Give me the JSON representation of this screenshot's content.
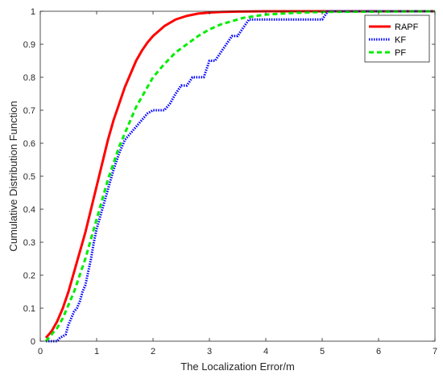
{
  "chart_data": {
    "type": "line",
    "title": "",
    "xlabel": "The Localization Error/m",
    "ylabel": "Cumulative Distribution Function",
    "xlim": [
      0,
      7
    ],
    "ylim": [
      0,
      1
    ],
    "xticks": [
      "0",
      "1",
      "2",
      "3",
      "4",
      "5",
      "6",
      "7"
    ],
    "yticks": [
      "0",
      "0.1",
      "0.2",
      "0.3",
      "0.4",
      "0.5",
      "0.6",
      "0.7",
      "0.8",
      "0.9",
      "1"
    ],
    "grid": false,
    "legend_position": "top-right",
    "series": [
      {
        "name": "RAPF",
        "color": "#ff0000",
        "dash": "solid",
        "x": [
          0.1,
          0.2,
          0.3,
          0.4,
          0.5,
          0.6,
          0.7,
          0.8,
          0.9,
          1.0,
          1.1,
          1.2,
          1.3,
          1.4,
          1.5,
          1.6,
          1.7,
          1.8,
          1.9,
          2.0,
          2.2,
          2.4,
          2.6,
          2.8,
          3.0,
          3.2,
          3.5,
          4.0,
          5.0,
          7.0
        ],
        "y": [
          0.01,
          0.03,
          0.06,
          0.1,
          0.15,
          0.21,
          0.27,
          0.33,
          0.4,
          0.47,
          0.54,
          0.61,
          0.67,
          0.72,
          0.77,
          0.81,
          0.85,
          0.88,
          0.905,
          0.925,
          0.955,
          0.975,
          0.986,
          0.993,
          0.996,
          0.998,
          0.999,
          1.0,
          1.0,
          1.0
        ]
      },
      {
        "name": "KF",
        "color": "#0000ff",
        "dash": "dotted",
        "x": [
          0.1,
          0.3,
          0.35,
          0.45,
          0.5,
          0.55,
          0.6,
          0.65,
          0.7,
          0.75,
          0.8,
          0.85,
          0.9,
          0.95,
          1.0,
          1.05,
          1.1,
          1.2,
          1.3,
          1.4,
          1.5,
          1.6,
          1.7,
          1.8,
          1.9,
          2.0,
          2.1,
          2.2,
          2.3,
          2.4,
          2.5,
          2.6,
          2.7,
          2.8,
          2.9,
          3.0,
          3.1,
          3.2,
          3.3,
          3.4,
          3.5,
          3.6,
          3.7,
          3.8,
          5.0,
          5.1,
          7.0
        ],
        "y": [
          0.0,
          0.0,
          0.01,
          0.02,
          0.05,
          0.07,
          0.09,
          0.1,
          0.12,
          0.15,
          0.17,
          0.21,
          0.25,
          0.3,
          0.34,
          0.37,
          0.4,
          0.46,
          0.52,
          0.57,
          0.61,
          0.63,
          0.65,
          0.67,
          0.69,
          0.7,
          0.7,
          0.7,
          0.72,
          0.75,
          0.775,
          0.775,
          0.8,
          0.8,
          0.8,
          0.85,
          0.85,
          0.875,
          0.9,
          0.925,
          0.925,
          0.95,
          0.975,
          0.975,
          0.975,
          1.0,
          1.0
        ]
      },
      {
        "name": "PF",
        "color": "#00ee00",
        "dash": "dashed",
        "x": [
          0.1,
          0.2,
          0.3,
          0.4,
          0.5,
          0.6,
          0.7,
          0.8,
          0.9,
          1.0,
          1.1,
          1.2,
          1.3,
          1.4,
          1.5,
          1.6,
          1.7,
          1.8,
          1.9,
          2.0,
          2.2,
          2.4,
          2.6,
          2.8,
          3.0,
          3.2,
          3.4,
          3.6,
          3.8,
          4.0,
          4.5,
          5.0,
          7.0
        ],
        "y": [
          0.0,
          0.02,
          0.04,
          0.07,
          0.11,
          0.15,
          0.2,
          0.25,
          0.31,
          0.37,
          0.43,
          0.49,
          0.54,
          0.59,
          0.63,
          0.67,
          0.71,
          0.74,
          0.77,
          0.8,
          0.84,
          0.875,
          0.9,
          0.925,
          0.945,
          0.96,
          0.97,
          0.98,
          0.985,
          0.99,
          0.995,
          0.998,
          1.0
        ]
      }
    ]
  }
}
